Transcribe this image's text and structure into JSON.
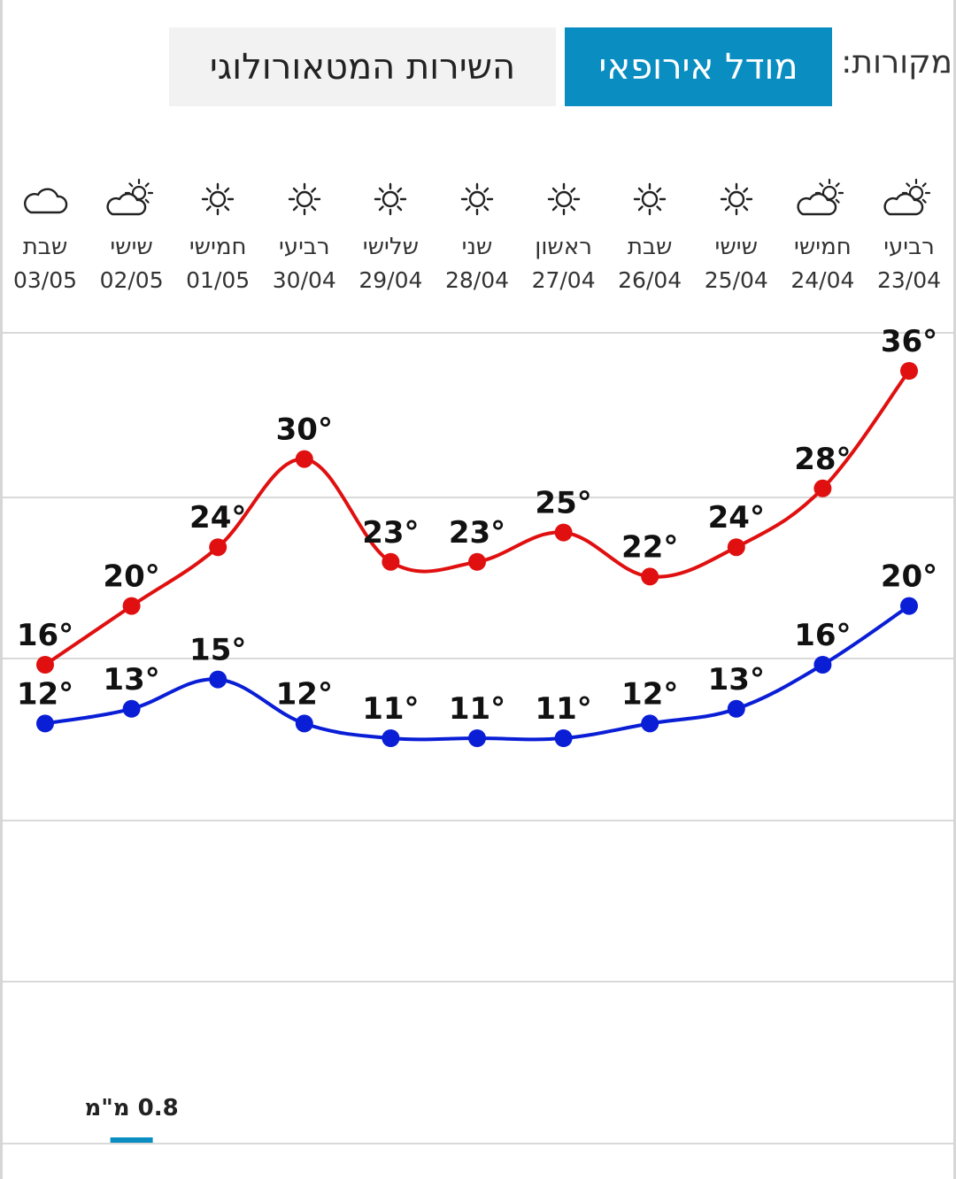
{
  "header": {
    "sources_label": "מקורות:",
    "tabs": [
      {
        "label": "מודל אירופאי",
        "active": true
      },
      {
        "label": "השירות המטאורולוגי",
        "active": false
      }
    ]
  },
  "days": [
    {
      "name": "רביעי",
      "date": "23/04",
      "icon": "partly-cloudy-icon"
    },
    {
      "name": "חמישי",
      "date": "24/04",
      "icon": "partly-cloudy-icon"
    },
    {
      "name": "שישי",
      "date": "25/04",
      "icon": "sun-icon"
    },
    {
      "name": "שבת",
      "date": "26/04",
      "icon": "sun-icon"
    },
    {
      "name": "ראשון",
      "date": "27/04",
      "icon": "sun-icon"
    },
    {
      "name": "שני",
      "date": "28/04",
      "icon": "sun-icon"
    },
    {
      "name": "שלישי",
      "date": "29/04",
      "icon": "sun-icon"
    },
    {
      "name": "רביעי",
      "date": "30/04",
      "icon": "sun-icon"
    },
    {
      "name": "חמישי",
      "date": "01/05",
      "icon": "sun-icon"
    },
    {
      "name": "שישי",
      "date": "02/05",
      "icon": "partly-cloudy-icon"
    },
    {
      "name": "שבת",
      "date": "03/05",
      "icon": "cloud-icon"
    }
  ],
  "chart_data": {
    "type": "line",
    "x": [
      "23/04",
      "24/04",
      "25/04",
      "26/04",
      "27/04",
      "28/04",
      "29/04",
      "30/04",
      "01/05",
      "02/05",
      "03/05"
    ],
    "series": [
      {
        "values": [
          36,
          28,
          24,
          22,
          25,
          23,
          23,
          30,
          24,
          20,
          16
        ],
        "color": "#e01010"
      },
      {
        "values": [
          20,
          16,
          13,
          12,
          11,
          11,
          11,
          12,
          15,
          13,
          12
        ],
        "color": "#0a1ed6"
      }
    ],
    "label_suffix": "°",
    "ylim": [
      10,
      38
    ],
    "grid": true,
    "precipitation": {
      "date": "02/05",
      "text": "0.8 מ\"מ",
      "color": "#0a8ec2"
    }
  }
}
